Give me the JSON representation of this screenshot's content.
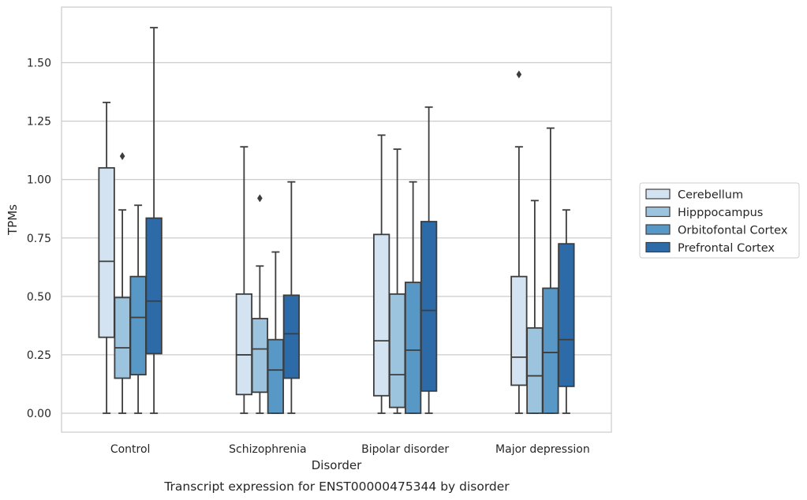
{
  "chart_data": {
    "type": "boxplot",
    "title": "",
    "caption": "Transcript expression for ENST00000475344 by disorder",
    "xlabel": "Disorder",
    "ylabel": "TPMs",
    "ylim": [
      -0.08,
      1.74
    ],
    "yticks": [
      0.0,
      0.25,
      0.5,
      0.75,
      1.0,
      1.25,
      1.5
    ],
    "ytick_labels": [
      "0.00",
      "0.25",
      "0.50",
      "0.75",
      "1.00",
      "1.25",
      "1.50"
    ],
    "grid": "horizontal",
    "legend_position": "right",
    "categories": [
      "Control",
      "Schizophrenia",
      "Bipolar disorder",
      "Major depression"
    ],
    "series": [
      {
        "name": "Cerebellum",
        "color": "#d4e3f1",
        "boxes": [
          {
            "whisker_low": 0.0,
            "q1": 0.325,
            "median": 0.65,
            "q3": 1.05,
            "whisker_high": 1.33,
            "outliers": []
          },
          {
            "whisker_low": 0.0,
            "q1": 0.08,
            "median": 0.25,
            "q3": 0.51,
            "whisker_high": 1.14,
            "outliers": []
          },
          {
            "whisker_low": 0.0,
            "q1": 0.075,
            "median": 0.31,
            "q3": 0.765,
            "whisker_high": 1.19,
            "outliers": []
          },
          {
            "whisker_low": 0.0,
            "q1": 0.12,
            "median": 0.24,
            "q3": 0.585,
            "whisker_high": 1.14,
            "outliers": [
              1.45
            ]
          }
        ]
      },
      {
        "name": "Hipppocampus",
        "color": "#9cc4de",
        "boxes": [
          {
            "whisker_low": 0.0,
            "q1": 0.15,
            "median": 0.28,
            "q3": 0.495,
            "whisker_high": 0.87,
            "outliers": [
              1.1
            ]
          },
          {
            "whisker_low": 0.0,
            "q1": 0.09,
            "median": 0.275,
            "q3": 0.405,
            "whisker_high": 0.63,
            "outliers": [
              0.92
            ]
          },
          {
            "whisker_low": 0.0,
            "q1": 0.025,
            "median": 0.165,
            "q3": 0.51,
            "whisker_high": 1.13,
            "outliers": []
          },
          {
            "whisker_low": 0.0,
            "q1": 0.0,
            "median": 0.16,
            "q3": 0.365,
            "whisker_high": 0.91,
            "outliers": []
          }
        ]
      },
      {
        "name": "Orbitofontal Cortex",
        "color": "#5898c6",
        "boxes": [
          {
            "whisker_low": 0.0,
            "q1": 0.165,
            "median": 0.41,
            "q3": 0.585,
            "whisker_high": 0.89,
            "outliers": []
          },
          {
            "whisker_low": 0.0,
            "q1": 0.0,
            "median": 0.185,
            "q3": 0.315,
            "whisker_high": 0.69,
            "outliers": []
          },
          {
            "whisker_low": 0.0,
            "q1": 0.0,
            "median": 0.27,
            "q3": 0.56,
            "whisker_high": 0.99,
            "outliers": []
          },
          {
            "whisker_low": 0.0,
            "q1": 0.0,
            "median": 0.26,
            "q3": 0.535,
            "whisker_high": 1.22,
            "outliers": []
          }
        ]
      },
      {
        "name": "Prefrontal Cortex",
        "color": "#2c6aa8",
        "boxes": [
          {
            "whisker_low": 0.0,
            "q1": 0.255,
            "median": 0.48,
            "q3": 0.835,
            "whisker_high": 1.65,
            "outliers": []
          },
          {
            "whisker_low": 0.0,
            "q1": 0.15,
            "median": 0.34,
            "q3": 0.505,
            "whisker_high": 0.99,
            "outliers": []
          },
          {
            "whisker_low": 0.0,
            "q1": 0.095,
            "median": 0.44,
            "q3": 0.82,
            "whisker_high": 1.31,
            "outliers": []
          },
          {
            "whisker_low": 0.0,
            "q1": 0.115,
            "median": 0.315,
            "q3": 0.725,
            "whisker_high": 0.87,
            "outliers": []
          }
        ]
      }
    ]
  }
}
